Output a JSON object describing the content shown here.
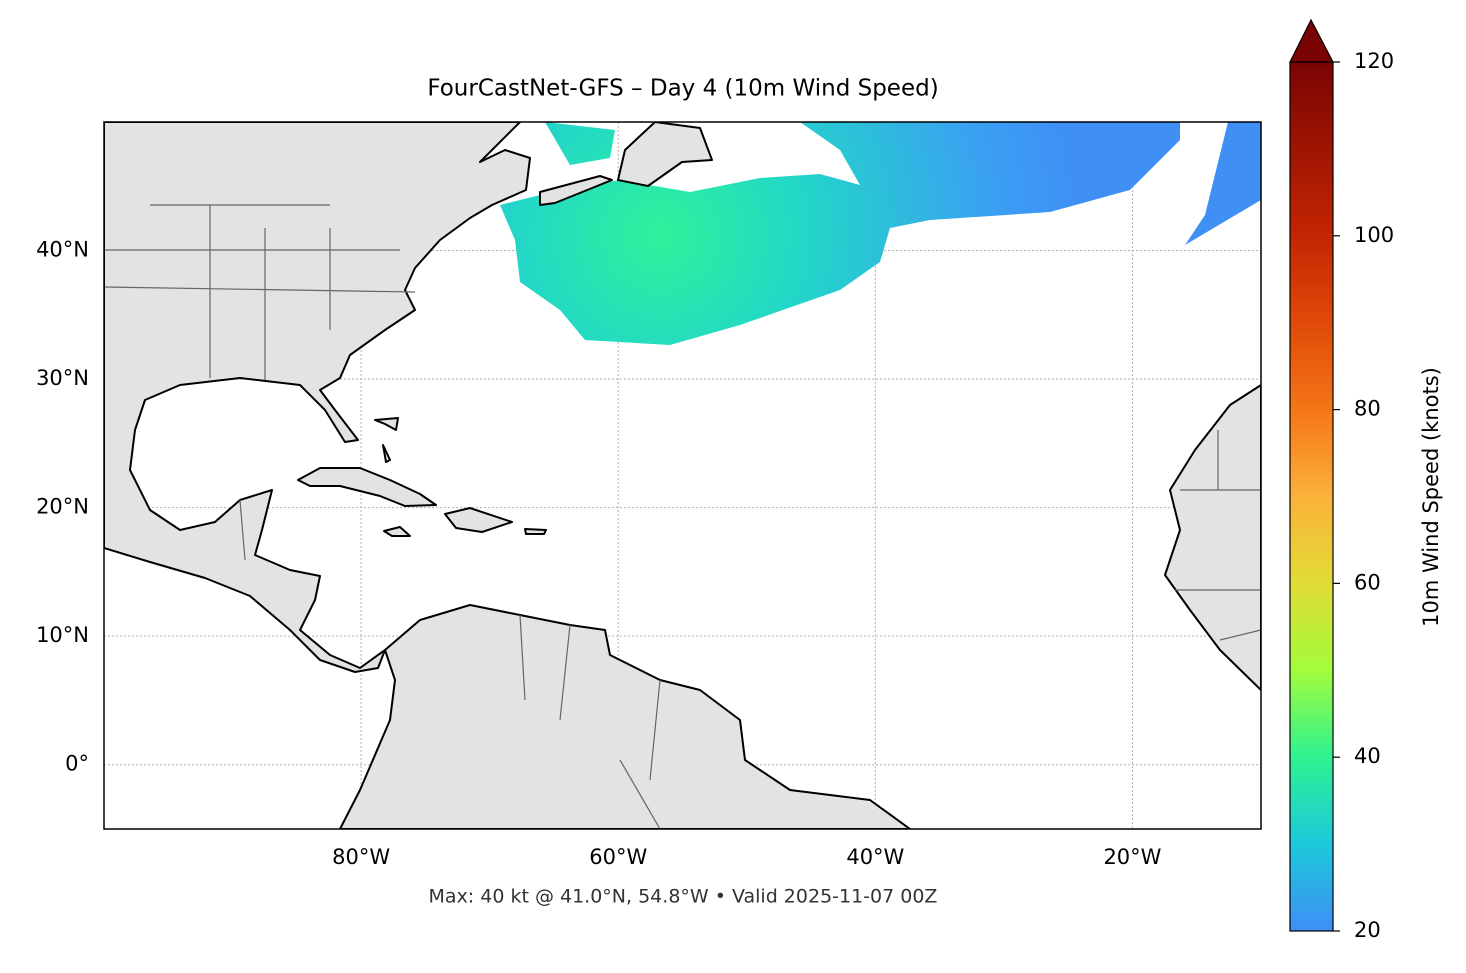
{
  "chart_data": {
    "type": "map",
    "title": "FourCastNet-GFS – Day 4 (10m Wind Speed)",
    "subtitle": "Max: 40 kt @ 41.0°N, 54.8°W • Valid 2025-11-07 00Z",
    "xlim": [
      -100,
      -10
    ],
    "ylim": [
      -5,
      50
    ],
    "xticks": [
      {
        "value": -80,
        "label": "80°W"
      },
      {
        "value": -60,
        "label": "60°W"
      },
      {
        "value": -40,
        "label": "40°W"
      },
      {
        "value": -20,
        "label": "20°W"
      }
    ],
    "yticks": [
      {
        "value": 0,
        "label": "0°"
      },
      {
        "value": 10,
        "label": "10°N"
      },
      {
        "value": 20,
        "label": "20°N"
      },
      {
        "value": 30,
        "label": "30°N"
      },
      {
        "value": 40,
        "label": "40°N"
      }
    ],
    "grid": true,
    "colorbar": {
      "label": "10m Wind Speed (knots)",
      "clim": [
        20,
        120
      ],
      "ticks": [
        20,
        40,
        60,
        80,
        100,
        120
      ]
    }
  }
}
